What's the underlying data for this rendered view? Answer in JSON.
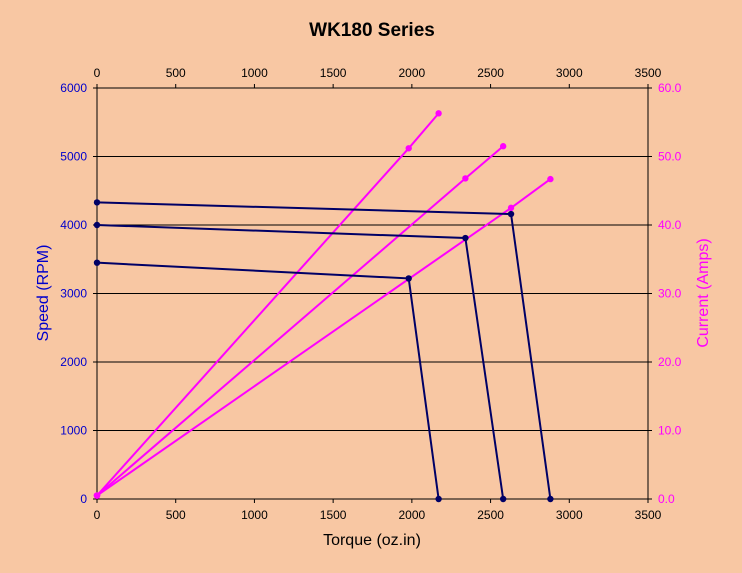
{
  "chart_data": {
    "type": "line",
    "title": "WK180 Series",
    "xlabel": "Torque (oz.in)",
    "ylabel_left": "Speed (RPM)",
    "ylabel_right": "Current (Amps)",
    "xlim": [
      0,
      3500
    ],
    "ylim_left": [
      0,
      6000
    ],
    "ylim_right": [
      0,
      60
    ],
    "x_ticks": [
      "0",
      "500",
      "1000",
      "1500",
      "2000",
      "2500",
      "3000",
      "3500"
    ],
    "y_left_ticks": [
      "0",
      "1000",
      "2000",
      "3000",
      "4000",
      "5000",
      "6000"
    ],
    "y_right_ticks": [
      "0.0",
      "10.0",
      "20.0",
      "30.0",
      "40.0",
      "50.0",
      "60.0"
    ],
    "grid": true,
    "colors": {
      "background": "#F8C7A3",
      "speed": "#000066",
      "current": "#FF00FF",
      "left_axis_text": "#0000CC",
      "right_axis_text": "#FF00FF",
      "grid": "#000000"
    },
    "speed_series": [
      {
        "points": [
          [
            0,
            3450
          ],
          [
            1980,
            3220
          ],
          [
            2170,
            0
          ]
        ]
      },
      {
        "points": [
          [
            0,
            4000
          ],
          [
            2340,
            3810
          ],
          [
            2580,
            0
          ]
        ]
      },
      {
        "points": [
          [
            0,
            4330
          ],
          [
            2630,
            4160
          ],
          [
            2880,
            0
          ]
        ]
      }
    ],
    "current_series": [
      {
        "points": [
          [
            0,
            0.5
          ],
          [
            1980,
            51.2
          ],
          [
            2170,
            56.3
          ]
        ]
      },
      {
        "points": [
          [
            0,
            0.5
          ],
          [
            2340,
            46.8
          ],
          [
            2580,
            51.5
          ]
        ]
      },
      {
        "points": [
          [
            0,
            0.5
          ],
          [
            2630,
            42.5
          ],
          [
            2880,
            46.7
          ]
        ]
      }
    ]
  }
}
